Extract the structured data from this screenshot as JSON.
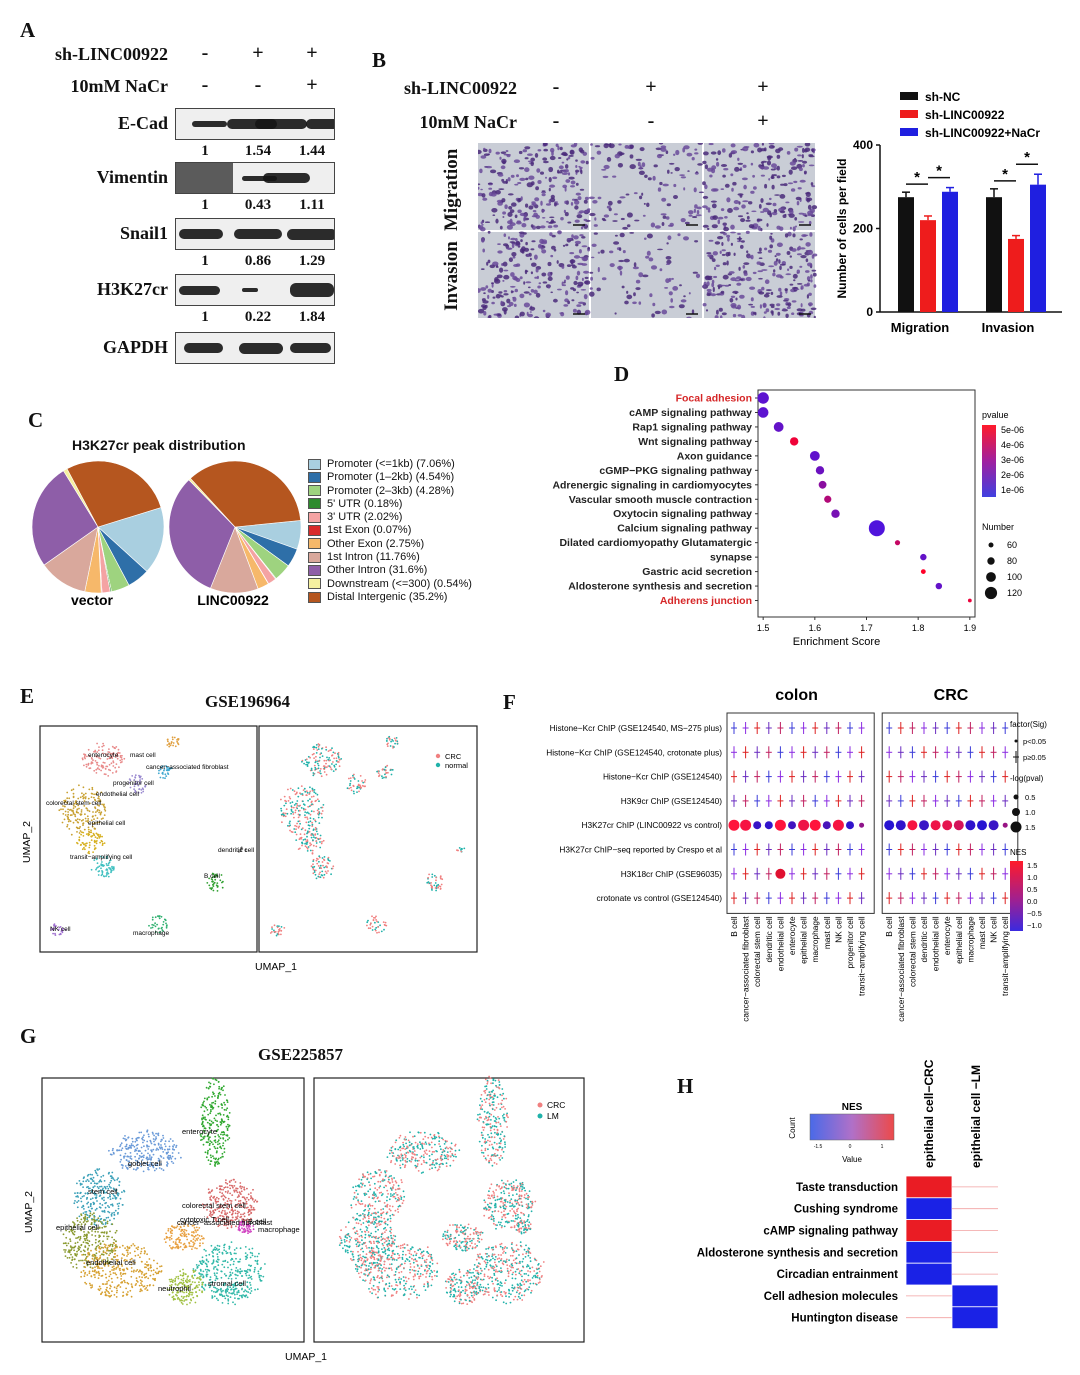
{
  "panelA": {
    "label": "A",
    "conditions": [
      {
        "name": "sh-LINC00922",
        "values": [
          "-",
          "+",
          "+"
        ]
      },
      {
        "name": "10mM NaCr",
        "values": [
          "-",
          "-",
          "+"
        ]
      }
    ],
    "blots": [
      {
        "name": "E-Cad",
        "quant": [
          "1",
          "1.54",
          "1.44"
        ]
      },
      {
        "name": "Vimentin",
        "quant": [
          "1",
          "0.43",
          "1.11"
        ]
      },
      {
        "name": "Snail1",
        "quant": [
          "1",
          "0.86",
          "1.29"
        ]
      },
      {
        "name": "H3K27cr",
        "quant": [
          "1",
          "0.22",
          "1.84"
        ]
      },
      {
        "name": "GAPDH",
        "quant": []
      }
    ]
  },
  "panelB": {
    "label": "B",
    "conditions": [
      {
        "name": "sh-LINC00922",
        "values": [
          "-",
          "+",
          "+"
        ]
      },
      {
        "name": "10mM NaCr",
        "values": [
          "-",
          "-",
          "+"
        ]
      }
    ],
    "row_labels": [
      "Migration",
      "Invasion"
    ],
    "significance": "*"
  },
  "panelC": {
    "label": "C",
    "title": "H3K27cr peak distribution",
    "pie_labels": [
      "vector",
      "LINC00922"
    ],
    "legend": [
      {
        "label": "Promoter (<=1kb) (7.06%)",
        "color": "#a9cfe0",
        "vector": 16.5,
        "linc": 7.06
      },
      {
        "label": "Promoter (1–2kb) (4.54%)",
        "color": "#2e6fa8",
        "vector": 5.5,
        "linc": 4.54
      },
      {
        "label": "Promoter (2–3kb) (4.28%)",
        "color": "#9ed37f",
        "vector": 4.5,
        "linc": 4.28
      },
      {
        "label": "5' UTR (0.18%)",
        "color": "#2e8b2e",
        "vector": 0.3,
        "linc": 0.18
      },
      {
        "label": "3' UTR (2.02%)",
        "color": "#f4a3a3",
        "vector": 2.0,
        "linc": 2.02
      },
      {
        "label": "1st Exon (0.07%)",
        "color": "#d92b2b",
        "vector": 0.2,
        "linc": 0.07
      },
      {
        "label": "Other Exon (2.75%)",
        "color": "#f6b86a",
        "vector": 4.0,
        "linc": 2.75
      },
      {
        "label": "1st Intron (11.76%)",
        "color": "#d9a89c",
        "vector": 12.0,
        "linc": 11.76
      },
      {
        "label": "Other Intron (31.6%)",
        "color": "#8e5ea8",
        "vector": 26.0,
        "linc": 31.6
      },
      {
        "label": "Downstream (<=300) (0.54%)",
        "color": "#f5f0a0",
        "vector": 1.0,
        "linc": 0.54
      },
      {
        "label": "Distal Intergenic (35.2%)",
        "color": "#b5561f",
        "vector": 28.0,
        "linc": 35.2
      }
    ]
  },
  "panelD": {
    "label": "D",
    "xlabel": "Enrichment Score",
    "legend_pvalue_title": "pvalue",
    "pvalue_ticks": [
      "5e-06",
      "4e-06",
      "3e-06",
      "2e-06",
      "1e-06"
    ],
    "legend_number_title": "Number",
    "number_ticks": [
      "60",
      "80",
      "100",
      "120"
    ],
    "highlight_color": "#d62728"
  },
  "chart_data": [
    {
      "type": "bar",
      "panel": "B",
      "categories": [
        "Migration",
        "Invasion"
      ],
      "series": [
        {
          "name": "sh-NC",
          "color": "#111111",
          "values": [
            275,
            275
          ],
          "err": [
            12,
            20
          ]
        },
        {
          "name": "sh-LINC00922",
          "color": "#ee1c1c",
          "values": [
            220,
            175
          ],
          "err": [
            10,
            8
          ]
        },
        {
          "name": "sh-LINC00922+NaCr",
          "color": "#1f1fe0",
          "values": [
            288,
            305
          ],
          "err": [
            10,
            25
          ]
        }
      ],
      "ylabel": "Number of cells per field",
      "yticks": [
        "0",
        "200",
        "400"
      ],
      "ylim": [
        0,
        400
      ]
    },
    {
      "type": "scatter",
      "panel": "D",
      "terms": [
        {
          "name": "Focal adhesion",
          "x": 1.5,
          "p": 0.8,
          "n": 95,
          "highlight": true
        },
        {
          "name": "cAMP signaling pathway",
          "x": 1.5,
          "p": 0.8,
          "n": 90,
          "highlight": false
        },
        {
          "name": "Rap1 signaling pathway",
          "x": 1.53,
          "p": 1.0,
          "n": 85,
          "highlight": false
        },
        {
          "name": "Wnt signaling pathway",
          "x": 1.56,
          "p": 4.6,
          "n": 75,
          "highlight": false
        },
        {
          "name": "Axon guidance",
          "x": 1.6,
          "p": 0.9,
          "n": 85,
          "highlight": false
        },
        {
          "name": "cGMP−PKG signaling pathway",
          "x": 1.61,
          "p": 1.2,
          "n": 75,
          "highlight": false
        },
        {
          "name": "Adrenergic signaling in cardiomyocytes",
          "x": 1.615,
          "p": 2.0,
          "n": 72,
          "highlight": false
        },
        {
          "name": "Vascular smooth muscle contraction",
          "x": 1.625,
          "p": 3.0,
          "n": 68,
          "highlight": false
        },
        {
          "name": "Oxytocin signaling pathway",
          "x": 1.64,
          "p": 1.5,
          "n": 75,
          "highlight": false
        },
        {
          "name": "Calcium signaling pathway",
          "x": 1.72,
          "p": 0.5,
          "n": 125,
          "highlight": false
        },
        {
          "name": "Dilated cardiomyopathy Glutamatergic",
          "x": 1.76,
          "p": 3.5,
          "n": 55,
          "highlight": false
        },
        {
          "name": "synapse",
          "x": 1.81,
          "p": 1.0,
          "n": 62,
          "highlight": false
        },
        {
          "name": "Gastric acid secretion",
          "x": 1.81,
          "p": 5.0,
          "n": 52,
          "highlight": false
        },
        {
          "name": "Aldosterone synthesis and secretion",
          "x": 1.84,
          "p": 1.0,
          "n": 62,
          "highlight": false
        },
        {
          "name": "Adherens junction",
          "x": 1.9,
          "p": 4.5,
          "n": 45,
          "highlight": true
        }
      ],
      "xticks": [
        "1.5",
        "1.6",
        "1.7",
        "1.8",
        "1.9"
      ],
      "xlim": [
        1.49,
        1.91
      ]
    },
    {
      "type": "scatter",
      "panel": "F",
      "rows": [
        "Histone−Kcr ChIP (GSE124540, MS−275 plus)",
        "Histone−Kcr ChIP (GSE124540, crotonate plus)",
        "Histone−Kcr ChIP (GSE124540)",
        "H3K9cr ChIP (GSE124540)",
        "H3K27cr ChIP (LINC00922 vs control)",
        "H3K27cr ChIP−seq reported by Crespo et al",
        "H3K18cr ChIP (GSE96035)",
        "crotonate vs control (GSE124540)"
      ],
      "columns_colon": [
        "B cell",
        "cancer−associated fibroblast",
        "colorectal stem cell",
        "dendritic cell",
        "endothelial cell",
        "enterocyte",
        "epithelial cell",
        "macrophage",
        "mast cell",
        "NK cell",
        "progenitor cell",
        "transit−amplifying cell"
      ],
      "columns_crc": [
        "B cell",
        "cancer−associated fibroblast",
        "colorectal stem cell",
        "dendritic cell",
        "endothelial cell",
        "enterocyte",
        "epithelial cell",
        "macrophage",
        "mast cell",
        "NK cell",
        "transit−amplifying cell"
      ],
      "row5_colon_nes": [
        1.5,
        1.4,
        -0.8,
        -0.9,
        1.5,
        -0.7,
        1.3,
        1.6,
        -0.6,
        1.4,
        -0.9,
        0.2
      ],
      "row5_crc_nes": [
        -1.0,
        -0.9,
        1.4,
        -0.8,
        1.3,
        1.2,
        1.0,
        -0.9,
        -1.0,
        -0.8,
        0.3
      ],
      "row7_colon_dot_index": 4,
      "facets": [
        "colon",
        "CRC"
      ],
      "legend_sig_title": "factor(Sig)",
      "legend_sig": [
        "p<0.05",
        "p≥0.05"
      ],
      "legend_size_title": "-log(pval)",
      "legend_size": [
        "0.5",
        "1.0",
        "1.5"
      ],
      "legend_nes_title": "NES",
      "legend_nes": [
        "1.5",
        "1.0",
        "0.5",
        "0.0",
        "−0.5",
        "−1.0"
      ]
    },
    {
      "type": "heatmap",
      "panel": "H",
      "columns": [
        "epithelial cell−CRC",
        "epithelial cell −LM"
      ],
      "rows": [
        "Taste transduction",
        "Cushing syndrome",
        "cAMP signaling pathway",
        "Aldosterone synthesis and secretion",
        "Circadian entrainment",
        "Cell adhesion molecules",
        "Huntington disease"
      ],
      "values": [
        [
          1.2,
          null
        ],
        [
          -1.5,
          null
        ],
        [
          1.2,
          null
        ],
        [
          -1.5,
          null
        ],
        [
          -1.5,
          null
        ],
        [
          null,
          -1.5
        ],
        [
          null,
          -1.5
        ]
      ],
      "legend_title": "NES",
      "legend_ylabel": "Count",
      "legend_xlabel": "Value",
      "legend_ticks": [
        "-1.5",
        "0",
        "1"
      ]
    }
  ],
  "panelE": {
    "label": "E",
    "title": "GSE196964",
    "xlabel": "UMAP_1",
    "ylabel": "UMAP_2",
    "legend": [
      {
        "name": "CRC",
        "color": "#f08080"
      },
      {
        "name": "normal",
        "color": "#20b2aa"
      }
    ],
    "clusters": [
      "enterocyte",
      "mast cell",
      "cancer−associated fibroblast",
      "progenitor cell",
      "endothelial cell",
      "colorectal stem cell",
      "epithelial cell",
      "transit−amplifying cell",
      "dendritic cell",
      "B cell",
      "NK cell",
      "macrophage"
    ]
  },
  "panelF": {
    "label": "F"
  },
  "panelG": {
    "label": "G",
    "title": "GSE225857",
    "xlabel": "UMAP_1",
    "ylabel": "UMAP_2",
    "legend": [
      {
        "name": "CRC",
        "color": "#f08080"
      },
      {
        "name": "LM",
        "color": "#20b2aa"
      }
    ],
    "clusters": [
      "goblet cell",
      "enterocyte",
      "stem cell",
      "epithelial cell",
      "colorectal stem cell",
      "B cell",
      "cytotoxic T cell",
      "cancer−associated fibroblast",
      "macrophage",
      "endothelial cell",
      "neutrophil",
      "stromal cell"
    ]
  },
  "panelH": {
    "label": "H"
  }
}
